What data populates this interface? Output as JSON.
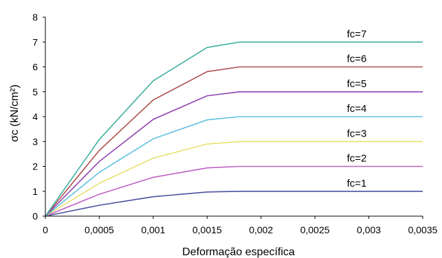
{
  "chart_data": {
    "type": "line",
    "xlabel": "Deformação específica",
    "ylabel": "σc (kN/cm²)",
    "xlim": [
      0,
      0.0035
    ],
    "ylim": [
      0,
      8
    ],
    "x_ticks": [
      "0",
      "0,0005",
      "0,001",
      "0,0015",
      "0,002",
      "0,0025",
      "0,003",
      "0,0035"
    ],
    "y_ticks": [
      "0",
      "1",
      "2",
      "3",
      "4",
      "5",
      "6",
      "7",
      "8"
    ],
    "grid": false,
    "series": [
      {
        "name": "fc=1",
        "color": "#4a4fa0",
        "x": [
          0,
          0.0005,
          0.001,
          0.0015,
          0.0018,
          0.0035
        ],
        "y": [
          0,
          0.44,
          0.78,
          0.97,
          1.0,
          1.0
        ]
      },
      {
        "name": "fc=2",
        "color": "#c060c0",
        "x": [
          0,
          0.0005,
          0.001,
          0.0015,
          0.0018,
          0.0035
        ],
        "y": [
          0,
          0.88,
          1.56,
          1.94,
          2.0,
          2.0
        ]
      },
      {
        "name": "fc=3",
        "color": "#e8e070",
        "x": [
          0,
          0.0005,
          0.001,
          0.0015,
          0.0018,
          0.0035
        ],
        "y": [
          0,
          1.32,
          2.33,
          2.9,
          3.0,
          3.0
        ]
      },
      {
        "name": "fc=4",
        "color": "#60c0e0",
        "x": [
          0,
          0.0005,
          0.001,
          0.0015,
          0.0018,
          0.0035
        ],
        "y": [
          0,
          1.76,
          3.11,
          3.87,
          4.0,
          4.0
        ]
      },
      {
        "name": "fc=5",
        "color": "#9040b0",
        "x": [
          0,
          0.0005,
          0.001,
          0.0015,
          0.0018,
          0.0035
        ],
        "y": [
          0,
          2.2,
          3.89,
          4.84,
          5.0,
          5.0
        ]
      },
      {
        "name": "fc=6",
        "color": "#b05050",
        "x": [
          0,
          0.0005,
          0.001,
          0.0015,
          0.0018,
          0.0035
        ],
        "y": [
          0,
          2.64,
          4.67,
          5.81,
          6.0,
          6.0
        ]
      },
      {
        "name": "fc=7",
        "color": "#40b0a0",
        "x": [
          0,
          0.0005,
          0.001,
          0.0015,
          0.0018,
          0.0035
        ],
        "y": [
          0,
          3.08,
          5.44,
          6.78,
          7.0,
          7.0
        ]
      }
    ]
  }
}
